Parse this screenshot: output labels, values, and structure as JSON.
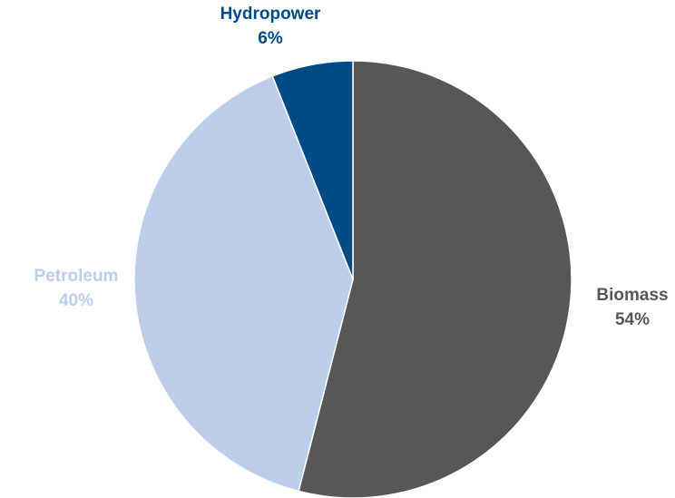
{
  "chart_data": {
    "type": "pie",
    "title": "",
    "legend": "none",
    "slices": [
      {
        "name": "Biomass",
        "value": 54,
        "label": "54%",
        "color": "#575757"
      },
      {
        "name": "Petroleum",
        "value": 40,
        "label": "40%",
        "color": "#bccee9"
      },
      {
        "name": "Hydropower",
        "value": 6,
        "label": "6%",
        "color": "#004a86"
      }
    ]
  }
}
